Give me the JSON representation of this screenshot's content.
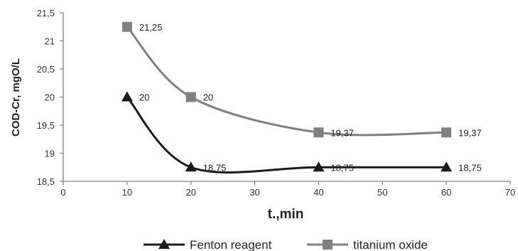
{
  "chart_data": {
    "type": "line",
    "title": "",
    "xlabel": "t.,min",
    "ylabel": "COD-Cr, mgO/L",
    "xlim": [
      0,
      70
    ],
    "ylim": [
      18.5,
      21.5
    ],
    "x_ticks": [
      "0",
      "10",
      "20",
      "30",
      "40",
      "50",
      "60",
      "70"
    ],
    "y_ticks": [
      "18,5",
      "19",
      "19,5",
      "20",
      "20,5",
      "21",
      "21,5"
    ],
    "grid": false,
    "legend_position": "bottom",
    "smooth": true,
    "series": [
      {
        "name": "Fenton reagent",
        "marker": "triangle",
        "color": "#1a1a1a",
        "x": [
          10,
          20,
          40,
          60
        ],
        "values": [
          20,
          18.75,
          18.75,
          18.75
        ],
        "labels": [
          "20",
          "18,75",
          "18,75",
          "18,75"
        ]
      },
      {
        "name": "titanium oxide",
        "marker": "square",
        "color": "#808080",
        "x": [
          10,
          20,
          40,
          60
        ],
        "values": [
          21.25,
          20,
          19.37,
          19.37
        ],
        "labels": [
          "21,25",
          "20",
          "19,37",
          "19,37"
        ]
      }
    ]
  }
}
